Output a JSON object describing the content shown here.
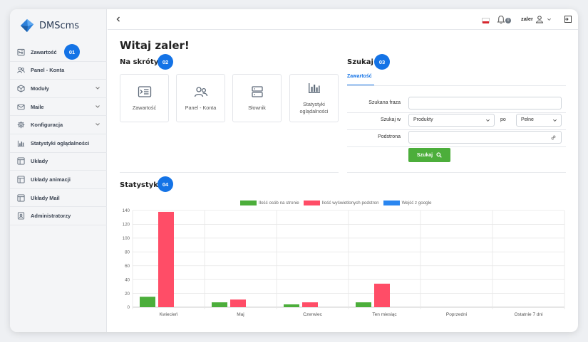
{
  "app": {
    "name": "DMScms"
  },
  "sidebar": {
    "items": [
      {
        "label": "Zawartość",
        "icon": "content-icon",
        "expandable": false,
        "badge": "01"
      },
      {
        "label": "Panel - Konta",
        "icon": "users-icon",
        "expandable": false
      },
      {
        "label": "Moduły",
        "icon": "cube-icon",
        "expandable": true
      },
      {
        "label": "Maile",
        "icon": "mail-icon",
        "expandable": true
      },
      {
        "label": "Konfiguracja",
        "icon": "gear-icon",
        "expandable": true
      },
      {
        "label": "Statystyki oglądalności",
        "icon": "bar-chart-icon",
        "expandable": false
      },
      {
        "label": "Układy",
        "icon": "layout-icon",
        "expandable": false
      },
      {
        "label": "Układy animacji",
        "icon": "layout-icon",
        "expandable": false
      },
      {
        "label": "Układy Mail",
        "icon": "layout-icon",
        "expandable": false
      },
      {
        "label": "Administratorzy",
        "icon": "admin-icon",
        "expandable": false
      }
    ]
  },
  "topbar": {
    "notifications_count": "0",
    "username": "zaler"
  },
  "main": {
    "title": "Witaj zaler!",
    "shortcuts_title": "Na skróty",
    "shortcuts_badge": "02",
    "shortcuts": [
      {
        "label": "Zawartość",
        "icon": "content-icon"
      },
      {
        "label": "Panel - Konta",
        "icon": "users-icon"
      },
      {
        "label": "Słownik",
        "icon": "dictionary-icon"
      },
      {
        "label": "Statystyki oglądalności",
        "icon": "bar-chart-icon"
      }
    ],
    "search": {
      "title": "Szukaj",
      "badge": "03",
      "tab": "Zawartość",
      "phrase_label": "Szukana fraza",
      "phrase_value": "",
      "search_in_label": "Szukaj w",
      "search_in_value": "Produkty",
      "po_label": "po",
      "match_value": "Pełne",
      "subpage_label": "Podstrona",
      "subpage_value": "",
      "button_label": "Szukaj"
    },
    "stats": {
      "title": "Statystyki",
      "badge": "04"
    }
  },
  "colors": {
    "accent": "#1473e6",
    "button_green": "#4cae3b",
    "series_green": "#4cae3b",
    "series_red": "#ff4d67",
    "series_blue": "#2a86f0"
  },
  "chart_data": {
    "type": "bar",
    "categories": [
      "Kwiecień",
      "Maj",
      "Czerwiec",
      "Ten miesiąc",
      "Poprzedni",
      "Ostatnie 7 dni"
    ],
    "series": [
      {
        "name": "Ilość osób na stronie",
        "color": "#4cae3b",
        "values": [
          15,
          7,
          4,
          7,
          0,
          0
        ]
      },
      {
        "name": "Ilość wyświetlonych podstron",
        "color": "#ff4d67",
        "values": [
          138,
          11,
          7,
          34,
          0,
          0
        ]
      },
      {
        "name": "Wejść z google",
        "color": "#2a86f0",
        "values": [
          0,
          0,
          0,
          0,
          0,
          0
        ]
      }
    ],
    "ylim": [
      0,
      140
    ],
    "yticks": [
      0,
      20,
      40,
      60,
      80,
      100,
      120,
      140
    ],
    "grid": true,
    "legend": "top"
  }
}
